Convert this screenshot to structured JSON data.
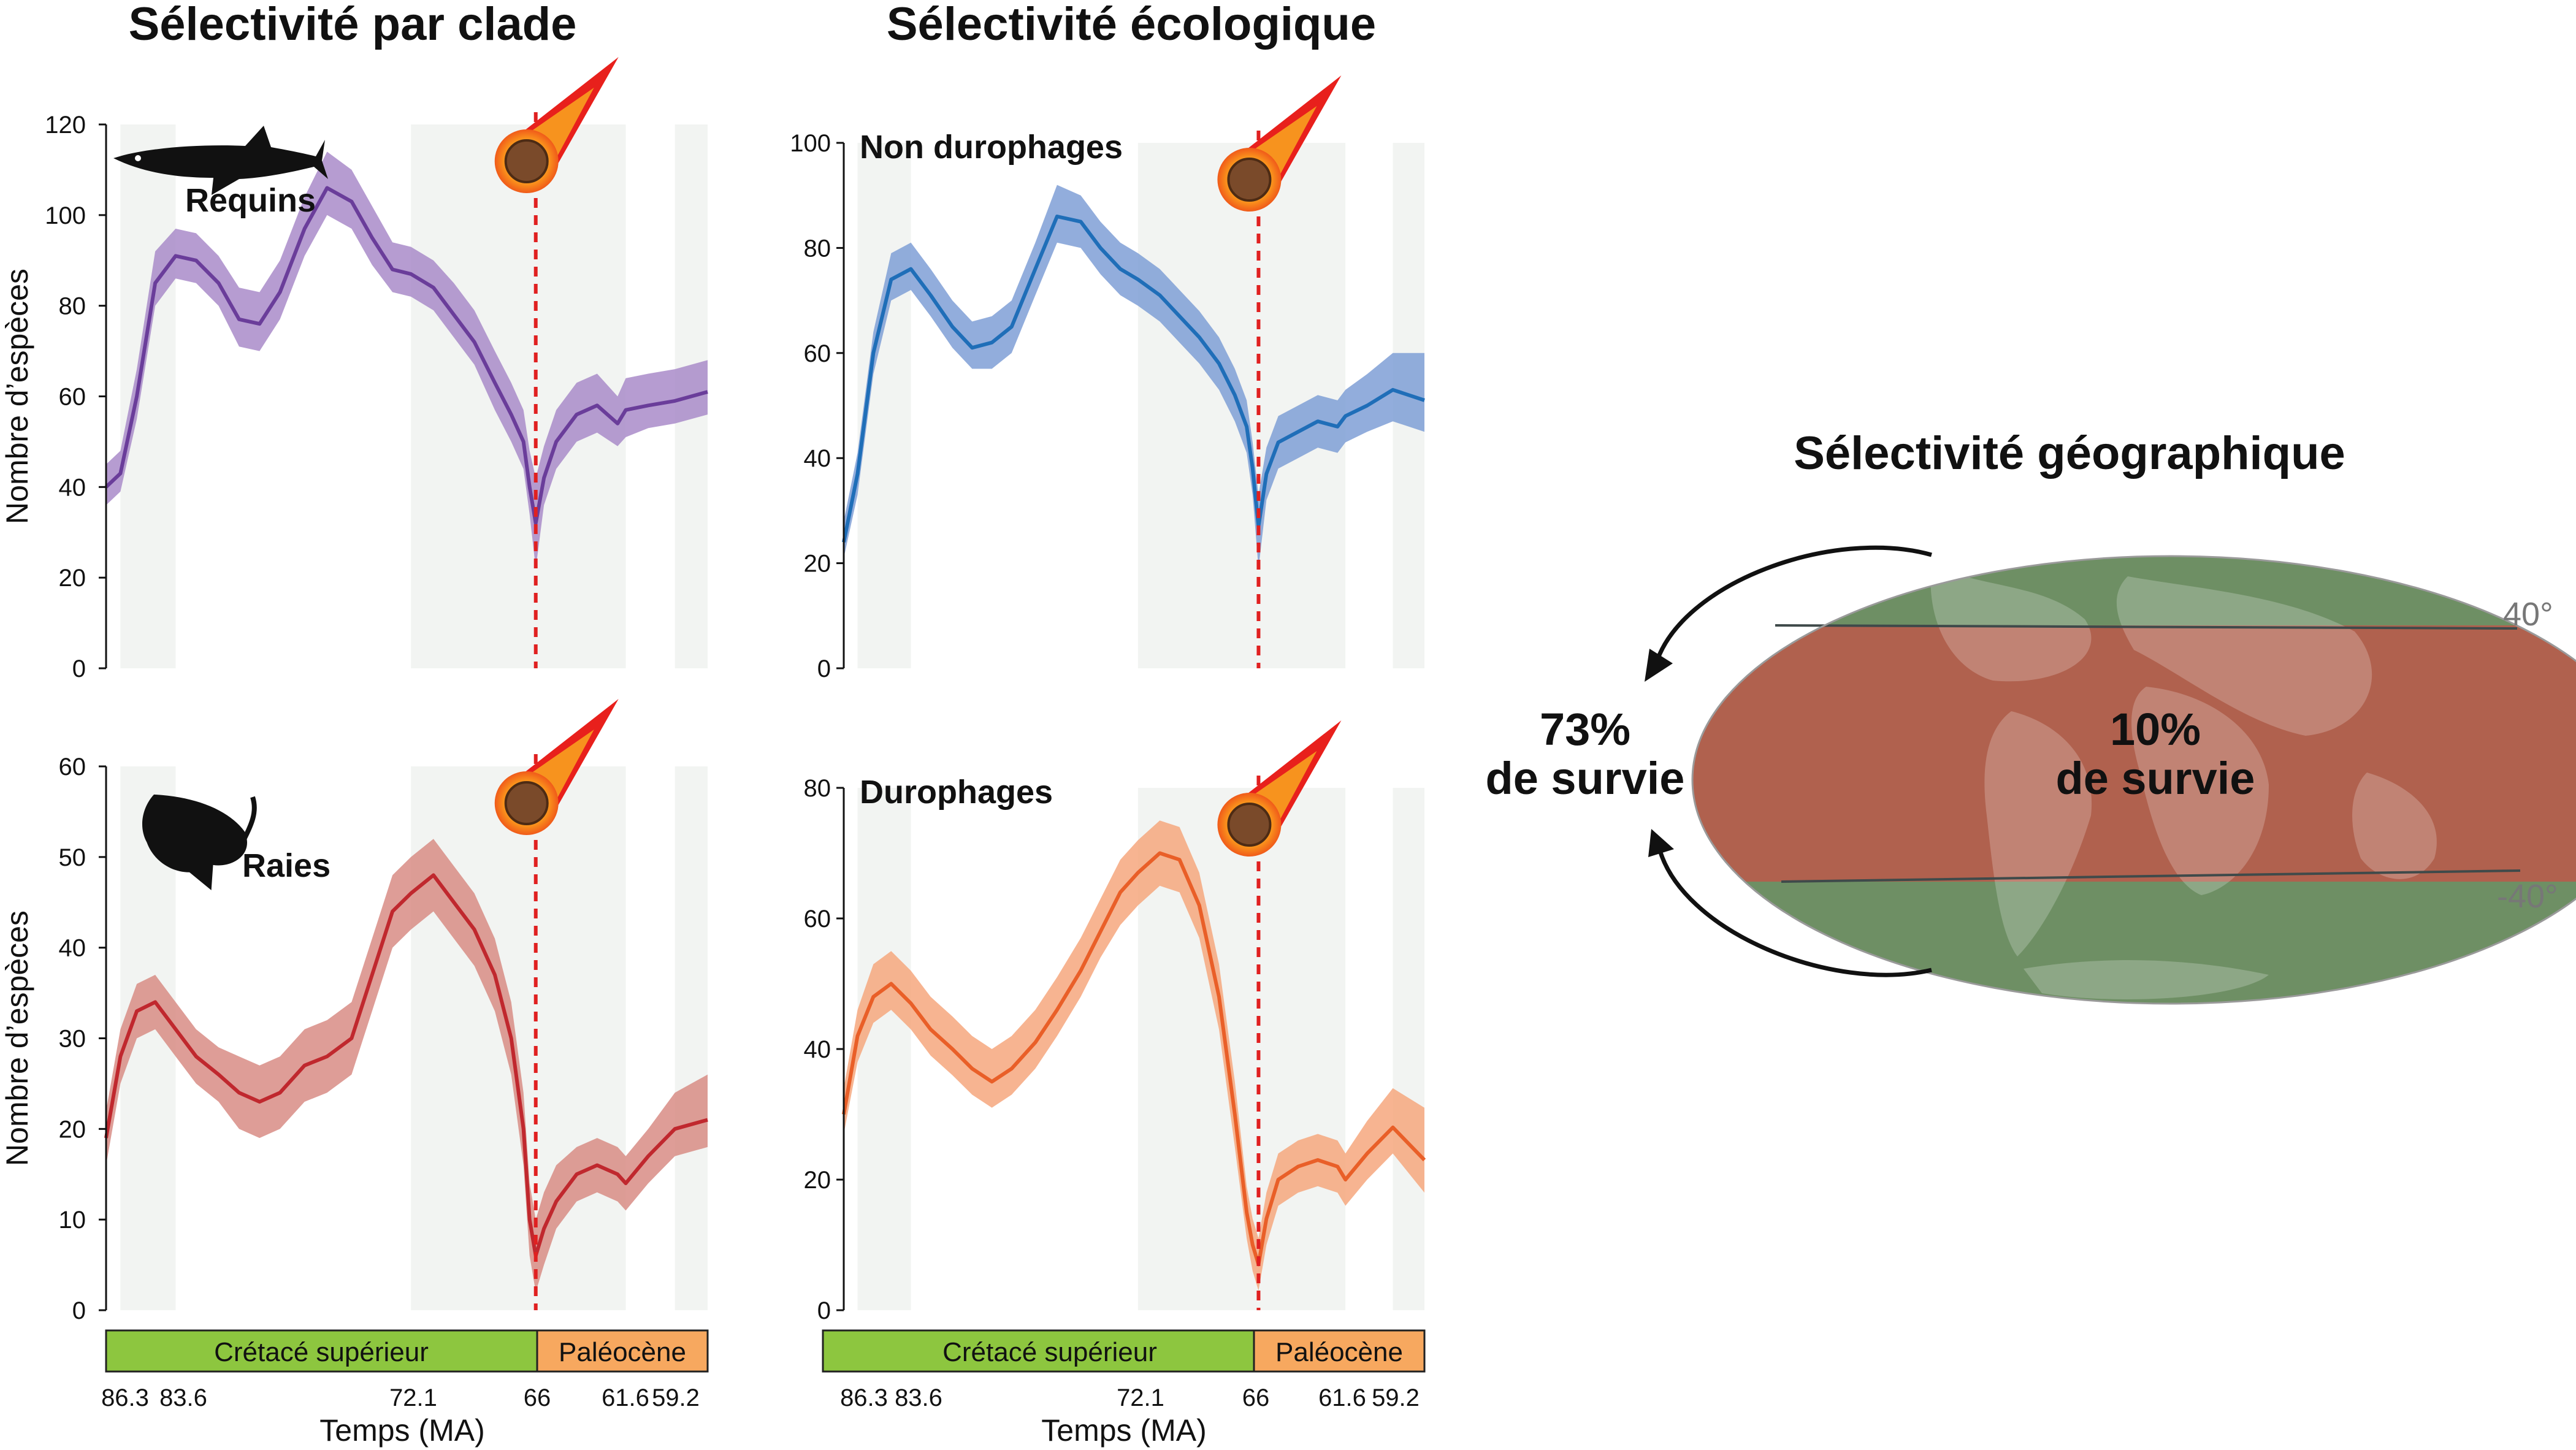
{
  "titles": {
    "clade": "Sélectivité par clade",
    "ecology": "Sélectivité écologique",
    "geography": "Sélectivité géographique"
  },
  "axis": {
    "ylabel": "Nombre d’espèces",
    "xlabel": "Temps (MA)",
    "xticks": [
      "86.3",
      "83.6",
      "72.1",
      "66",
      "61.6",
      "59.2"
    ]
  },
  "periods": {
    "cretaceous": "Crétacé supérieur",
    "paleocene": "Paléocène",
    "cretaceous_color": "#8dc63f",
    "paleocene_color": "#f7a85f"
  },
  "map": {
    "lat_north": "40°",
    "lat_south": "-40°",
    "outside_pct": "73%",
    "outside_label": "de survie",
    "inside_pct": "10%",
    "inside_label": "de survie",
    "band_color": "#b0614e",
    "polar_color": "#6e8f64"
  },
  "chart_data": [
    {
      "type": "area",
      "title": "Sélectivité par clade",
      "series_label": "Requins",
      "icon": "shark-icon",
      "color": "#6a3d9a",
      "band_color": "#a98bc9",
      "x_ticks": [
        86.3,
        83.6,
        72.1,
        66,
        61.6,
        59.2
      ],
      "ylim": [
        0,
        120
      ],
      "yticks": [
        0,
        20,
        40,
        60,
        80,
        100,
        120
      ],
      "extinction_x": 66,
      "x": [
        87.0,
        86.3,
        85.5,
        84.6,
        83.6,
        82.6,
        81.5,
        80.5,
        79.5,
        78.5,
        77.3,
        76.2,
        75.0,
        74.0,
        73.0,
        72.1,
        71.0,
        70.0,
        69.0,
        68.0,
        67.2,
        66.6,
        66.3,
        66.0,
        65.6,
        65.0,
        64.0,
        63.0,
        62.0,
        61.6,
        60.5,
        59.2,
        57.6
      ],
      "y": [
        40,
        43,
        60,
        85,
        91,
        90,
        85,
        77,
        76,
        83,
        97,
        106,
        103,
        95,
        88,
        87,
        84,
        78,
        72,
        63,
        56,
        50,
        40,
        32,
        42,
        50,
        56,
        58,
        54,
        57,
        58,
        59,
        61
      ],
      "low": [
        36,
        39,
        55,
        80,
        86,
        85,
        80,
        71,
        70,
        77,
        91,
        100,
        97,
        89,
        83,
        82,
        79,
        73,
        67,
        57,
        50,
        44,
        34,
        22,
        36,
        44,
        50,
        52,
        49,
        51,
        53,
        54,
        56
      ],
      "high": [
        45,
        48,
        66,
        92,
        97,
        96,
        91,
        84,
        83,
        90,
        104,
        114,
        110,
        102,
        94,
        93,
        90,
        85,
        79,
        70,
        63,
        57,
        48,
        42,
        49,
        57,
        63,
        65,
        60,
        64,
        65,
        66,
        68
      ]
    },
    {
      "type": "area",
      "title": "Sélectivité par clade",
      "series_label": "Raies",
      "icon": "ray-icon",
      "color": "#c0282e",
      "band_color": "#d88c85",
      "x_ticks": [
        86.3,
        83.6,
        72.1,
        66,
        61.6,
        59.2
      ],
      "ylim": [
        0,
        60
      ],
      "yticks": [
        0,
        10,
        20,
        30,
        40,
        50,
        60
      ],
      "extinction_x": 66,
      "x": [
        87.0,
        86.3,
        85.5,
        84.6,
        83.6,
        82.6,
        81.5,
        80.5,
        79.5,
        78.5,
        77.3,
        76.2,
        75.0,
        74.0,
        73.0,
        72.1,
        71.0,
        70.0,
        69.0,
        68.0,
        67.2,
        66.6,
        66.3,
        66.0,
        65.6,
        65.0,
        64.0,
        63.0,
        62.0,
        61.6,
        60.5,
        59.2,
        57.6
      ],
      "y": [
        19,
        28,
        33,
        34,
        31,
        28,
        26,
        24,
        23,
        24,
        27,
        28,
        30,
        37,
        44,
        46,
        48,
        45,
        42,
        37,
        30,
        20,
        10,
        6,
        9,
        12,
        15,
        16,
        15,
        14,
        17,
        20,
        21
      ],
      "low": [
        16,
        25,
        30,
        31,
        28,
        25,
        23,
        20,
        19,
        20,
        23,
        24,
        26,
        33,
        40,
        42,
        44,
        41,
        38,
        33,
        26,
        16,
        6,
        2,
        5,
        9,
        12,
        13,
        12,
        11,
        14,
        17,
        18
      ],
      "high": [
        22,
        31,
        36,
        37,
        34,
        31,
        29,
        28,
        27,
        28,
        31,
        32,
        34,
        41,
        48,
        50,
        52,
        49,
        46,
        41,
        34,
        24,
        14,
        10,
        13,
        16,
        18,
        19,
        18,
        17,
        20,
        24,
        26
      ]
    },
    {
      "type": "area",
      "title": "Sélectivité écologique",
      "series_label": "Non durophages",
      "color": "#1f6eb8",
      "band_color": "#7f9fd6",
      "x_ticks": [
        86.3,
        83.6,
        72.1,
        66,
        61.6,
        59.2
      ],
      "ylim": [
        0,
        100
      ],
      "yticks": [
        0,
        20,
        40,
        60,
        80,
        100
      ],
      "extinction_x": 66,
      "x": [
        87.0,
        86.3,
        85.5,
        84.6,
        83.6,
        82.6,
        81.5,
        80.5,
        79.5,
        78.5,
        77.3,
        76.2,
        75.0,
        74.0,
        73.0,
        72.1,
        71.0,
        70.0,
        69.0,
        68.0,
        67.2,
        66.6,
        66.3,
        66.0,
        65.6,
        65.0,
        64.0,
        63.0,
        62.0,
        61.6,
        60.5,
        59.2,
        57.6
      ],
      "y": [
        24,
        37,
        60,
        74,
        76,
        71,
        65,
        61,
        62,
        65,
        76,
        86,
        85,
        80,
        76,
        74,
        71,
        67,
        63,
        58,
        52,
        46,
        38,
        27,
        37,
        43,
        45,
        47,
        46,
        48,
        50,
        53,
        51
      ],
      "low": [
        21,
        33,
        56,
        70,
        72,
        67,
        61,
        57,
        57,
        60,
        71,
        81,
        80,
        75,
        71,
        69,
        66,
        62,
        58,
        53,
        47,
        41,
        33,
        19,
        32,
        38,
        40,
        42,
        41,
        43,
        45,
        47,
        45
      ],
      "high": [
        28,
        41,
        64,
        79,
        81,
        76,
        70,
        66,
        67,
        70,
        81,
        92,
        90,
        85,
        81,
        79,
        76,
        72,
        68,
        63,
        57,
        51,
        43,
        33,
        42,
        48,
        50,
        52,
        51,
        53,
        56,
        60,
        60
      ]
    },
    {
      "type": "area",
      "title": "Sélectivité écologique",
      "series_label": "Durophages",
      "color": "#e95f28",
      "band_color": "#f6a77e",
      "x_ticks": [
        86.3,
        83.6,
        72.1,
        66,
        61.6,
        59.2
      ],
      "ylim": [
        0,
        80
      ],
      "yticks": [
        0,
        20,
        40,
        60,
        80
      ],
      "extinction_x": 66,
      "x": [
        87.0,
        86.3,
        85.5,
        84.6,
        83.6,
        82.6,
        81.5,
        80.5,
        79.5,
        78.5,
        77.3,
        76.2,
        75.0,
        74.0,
        73.0,
        72.1,
        71.0,
        70.0,
        69.0,
        68.0,
        67.2,
        66.6,
        66.3,
        66.0,
        65.6,
        65.0,
        64.0,
        63.0,
        62.0,
        61.6,
        60.5,
        59.2,
        57.6
      ],
      "y": [
        30,
        42,
        48,
        50,
        47,
        43,
        40,
        37,
        35,
        37,
        41,
        46,
        52,
        58,
        64,
        67,
        70,
        69,
        62,
        48,
        30,
        15,
        10,
        7,
        14,
        20,
        22,
        23,
        22,
        20,
        24,
        28,
        23
      ],
      "low": [
        27,
        38,
        44,
        46,
        43,
        39,
        36,
        33,
        31,
        33,
        37,
        42,
        48,
        54,
        59,
        62,
        65,
        64,
        57,
        43,
        25,
        11,
        6,
        3,
        10,
        16,
        18,
        19,
        18,
        16,
        20,
        24,
        18
      ],
      "high": [
        34,
        46,
        53,
        55,
        52,
        48,
        45,
        42,
        40,
        42,
        46,
        51,
        57,
        63,
        69,
        72,
        75,
        74,
        67,
        53,
        35,
        19,
        14,
        11,
        18,
        24,
        26,
        27,
        26,
        24,
        29,
        34,
        31
      ]
    }
  ]
}
